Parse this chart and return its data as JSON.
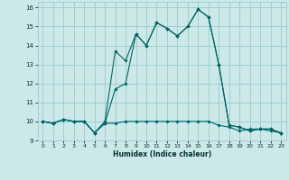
{
  "xlabel": "Humidex (Indice chaleur)",
  "xlim": [
    -0.5,
    23.5
  ],
  "ylim": [
    9,
    16.3
  ],
  "yticks": [
    9,
    10,
    11,
    12,
    13,
    14,
    15,
    16
  ],
  "xticks": [
    0,
    1,
    2,
    3,
    4,
    5,
    6,
    7,
    8,
    9,
    10,
    11,
    12,
    13,
    14,
    15,
    16,
    17,
    18,
    19,
    20,
    21,
    22,
    23
  ],
  "bg_color": "#cce8e8",
  "grid_color": "#99cccc",
  "line_color": "#006666",
  "series": [
    [
      10.0,
      9.9,
      10.1,
      10.0,
      10.0,
      9.4,
      9.9,
      9.9,
      10.0,
      10.0,
      10.0,
      10.0,
      10.0,
      10.0,
      10.0,
      10.0,
      10.0,
      9.8,
      9.7,
      9.5,
      9.6,
      9.6,
      9.5,
      9.4
    ],
    [
      10.0,
      9.9,
      10.1,
      10.0,
      10.0,
      9.4,
      9.9,
      11.7,
      12.0,
      14.6,
      14.0,
      15.2,
      14.9,
      14.5,
      15.0,
      15.9,
      15.5,
      13.0,
      9.8,
      9.7,
      9.5,
      9.6,
      9.6,
      9.4
    ],
    [
      10.0,
      9.9,
      10.1,
      10.0,
      10.0,
      9.4,
      10.0,
      13.7,
      13.2,
      14.6,
      14.0,
      15.2,
      14.9,
      14.5,
      15.0,
      15.9,
      15.5,
      13.0,
      9.8,
      9.7,
      9.5,
      9.6,
      9.6,
      9.4
    ]
  ]
}
